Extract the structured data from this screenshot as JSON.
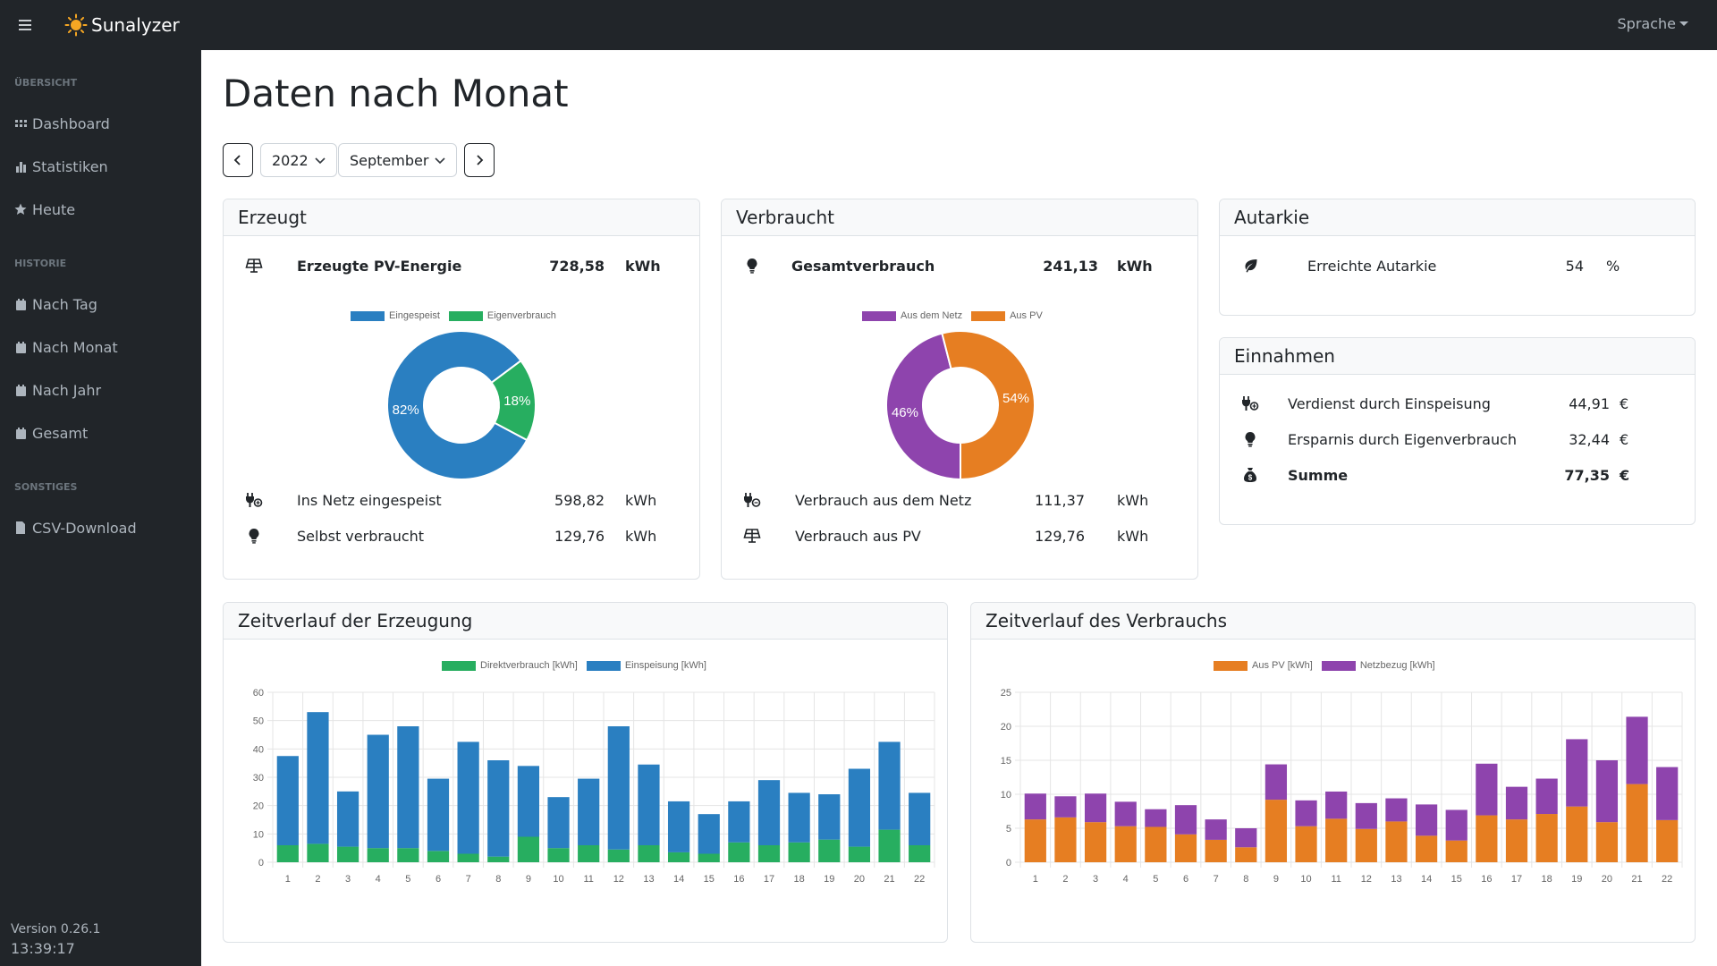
{
  "app": {
    "name": "Sunalyzer",
    "language_label": "Sprache",
    "version": "Version 0.26.1",
    "time": "13:39:17"
  },
  "sidebar": {
    "sections": [
      {
        "heading": "ÜBERSICHT"
      },
      {
        "heading": "HISTORIE"
      },
      {
        "heading": "SONSTIGES"
      }
    ],
    "items": [
      {
        "label": "Dashboard",
        "icon": "grid-icon"
      },
      {
        "label": "Statistiken",
        "icon": "bar-chart-icon"
      },
      {
        "label": "Heute",
        "icon": "star-icon"
      },
      {
        "label": "Nach Tag",
        "icon": "calendar-icon"
      },
      {
        "label": "Nach Monat",
        "icon": "calendar-icon"
      },
      {
        "label": "Nach Jahr",
        "icon": "calendar-icon"
      },
      {
        "label": "Gesamt",
        "icon": "calendar-icon"
      },
      {
        "label": "CSV-Download",
        "icon": "file-icon"
      }
    ]
  },
  "page": {
    "title": "Daten nach Monat"
  },
  "filter": {
    "year": "2022",
    "month": "September"
  },
  "erzeugt": {
    "title": "Erzeugt",
    "main_label": "Erzeugte PV-Energie",
    "main_value": "728,58",
    "main_unit": "kWh",
    "rows": [
      {
        "label": "Ins Netz eingespeist",
        "value": "598,82",
        "unit": "kWh",
        "icon": "plug-icon"
      },
      {
        "label": "Selbst verbraucht",
        "value": "129,76",
        "unit": "kWh",
        "icon": "lightbulb-icon"
      }
    ]
  },
  "verbraucht": {
    "title": "Verbraucht",
    "main_label": "Gesamtverbrauch",
    "main_value": "241,13",
    "main_unit": "kWh",
    "rows": [
      {
        "label": "Verbrauch aus dem Netz",
        "value": "111,37",
        "unit": "kWh",
        "icon": "plug-icon"
      },
      {
        "label": "Verbrauch aus PV",
        "value": "129,76",
        "unit": "kWh",
        "icon": "solar-panel-icon"
      }
    ]
  },
  "autarkie": {
    "title": "Autarkie",
    "label": "Erreichte Autarkie",
    "value": "54",
    "unit": "%"
  },
  "einnahmen": {
    "title": "Einnahmen",
    "rows": [
      {
        "label": "Verdienst durch Einspeisung",
        "value": "44,91",
        "unit": "€"
      },
      {
        "label": "Ersparnis durch Eigenverbrauch",
        "value": "32,44",
        "unit": "€"
      },
      {
        "label": "Summe",
        "value": "77,35",
        "unit": "€"
      }
    ]
  },
  "timeline_erzeugung": {
    "title": "Zeitverlauf der Erzeugung"
  },
  "timeline_verbrauch": {
    "title": "Zeitverlauf des Verbrauchs"
  },
  "colors": {
    "blue": "#2a7fc1",
    "green": "#27ae60",
    "purple": "#8e44ad",
    "orange": "#e67e22",
    "dark": "#212529"
  },
  "chart_data": [
    {
      "type": "pie",
      "variant": "doughnut",
      "labels": [
        "Eingespeist",
        "Eigenverbrauch"
      ],
      "values": [
        82,
        18
      ],
      "value_labels": [
        "82%",
        "18%"
      ],
      "colors": [
        "#2a7fc1",
        "#27ae60"
      ]
    },
    {
      "type": "pie",
      "variant": "doughnut",
      "labels": [
        "Aus dem Netz",
        "Aus PV"
      ],
      "values": [
        46,
        54
      ],
      "value_labels": [
        "46%",
        "54%"
      ],
      "colors": [
        "#8e44ad",
        "#e67e22"
      ]
    },
    {
      "type": "bar",
      "stacked": true,
      "categories": [
        "1",
        "2",
        "3",
        "4",
        "5",
        "6",
        "7",
        "8",
        "9",
        "10",
        "11",
        "12",
        "13",
        "14",
        "15",
        "16",
        "17",
        "18",
        "19",
        "20",
        "21",
        "22"
      ],
      "series": [
        {
          "name": "Direktverbrauch [kWh]",
          "color": "#27ae60",
          "values": [
            6,
            6.5,
            5.5,
            5,
            5,
            4,
            3,
            2,
            9,
            5,
            6,
            4.5,
            6,
            3.5,
            3,
            7,
            6,
            7,
            8,
            5.5,
            11.5,
            6
          ]
        },
        {
          "name": "Einspeisung [kWh]",
          "color": "#2a7fc1",
          "values": [
            31.5,
            46.5,
            19.5,
            40,
            43,
            25.5,
            39.5,
            34,
            25,
            18,
            23.5,
            43.5,
            28.5,
            18,
            14,
            14.5,
            23,
            17.5,
            16,
            27.5,
            31,
            18.5
          ]
        }
      ],
      "ylim": [
        0,
        60
      ],
      "yticks": [
        0,
        10,
        20,
        30,
        40,
        50,
        60
      ]
    },
    {
      "type": "bar",
      "stacked": true,
      "categories": [
        "1",
        "2",
        "3",
        "4",
        "5",
        "6",
        "7",
        "8",
        "9",
        "10",
        "11",
        "12",
        "13",
        "14",
        "15",
        "16",
        "17",
        "18",
        "19",
        "20",
        "21",
        "22"
      ],
      "series": [
        {
          "name": "Aus PV [kWh]",
          "color": "#e67e22",
          "values": [
            6.3,
            6.6,
            5.9,
            5.3,
            5.2,
            4.1,
            3.3,
            2.2,
            9.2,
            5.3,
            6.4,
            4.9,
            6,
            3.9,
            3.2,
            6.9,
            6.3,
            7.1,
            8.2,
            5.9,
            11.5,
            6.2
          ]
        },
        {
          "name": "Netzbezug [kWh]",
          "color": "#8e44ad",
          "values": [
            3.8,
            3.1,
            4.2,
            3.6,
            2.6,
            4.3,
            3,
            2.8,
            5.2,
            3.8,
            4,
            3.8,
            3.4,
            4.6,
            4.5,
            7.6,
            4.8,
            5.2,
            9.9,
            9.1,
            9.9,
            7.8
          ]
        }
      ],
      "ylim": [
        0,
        25
      ],
      "yticks": [
        0,
        5,
        10,
        15,
        20,
        25
      ]
    }
  ]
}
